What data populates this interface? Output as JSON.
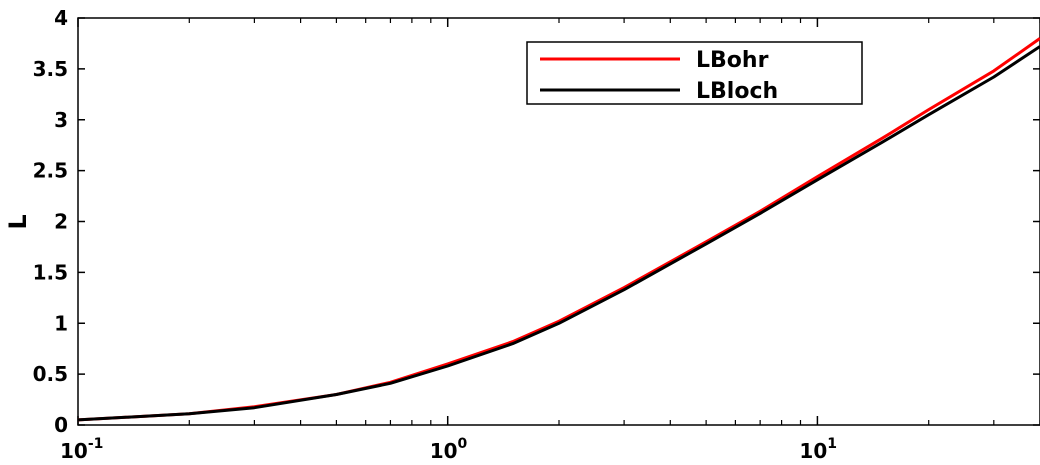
{
  "chart_data": {
    "type": "line",
    "title": "",
    "xlabel": "",
    "ylabel": "L",
    "xscale": "log",
    "xlim": [
      0.1,
      40
    ],
    "ylim": [
      0,
      4
    ],
    "grid": false,
    "legend_position": "top-right",
    "x_ticks": [
      {
        "value": 0.1,
        "base": "10",
        "exp": "-1"
      },
      {
        "value": 1,
        "base": "10",
        "exp": "0"
      },
      {
        "value": 10,
        "base": "10",
        "exp": "1"
      }
    ],
    "y_ticks": [
      "0",
      "0.5",
      "1",
      "1.5",
      "2",
      "2.5",
      "3",
      "3.5",
      "4"
    ],
    "x": [
      0.1,
      0.2,
      0.3,
      0.5,
      0.7,
      1,
      1.5,
      2,
      3,
      5,
      7,
      10,
      15,
      20,
      30,
      40
    ],
    "series": [
      {
        "name": "LBohr",
        "color": "#ff0000",
        "values": [
          0.05,
          0.11,
          0.18,
          0.3,
          0.42,
          0.6,
          0.82,
          1.02,
          1.35,
          1.8,
          2.1,
          2.44,
          2.82,
          3.1,
          3.48,
          3.8
        ]
      },
      {
        "name": "LBloch",
        "color": "#000000",
        "values": [
          0.05,
          0.11,
          0.17,
          0.3,
          0.41,
          0.58,
          0.8,
          1.0,
          1.33,
          1.78,
          2.08,
          2.41,
          2.78,
          3.05,
          3.42,
          3.72
        ]
      }
    ]
  }
}
